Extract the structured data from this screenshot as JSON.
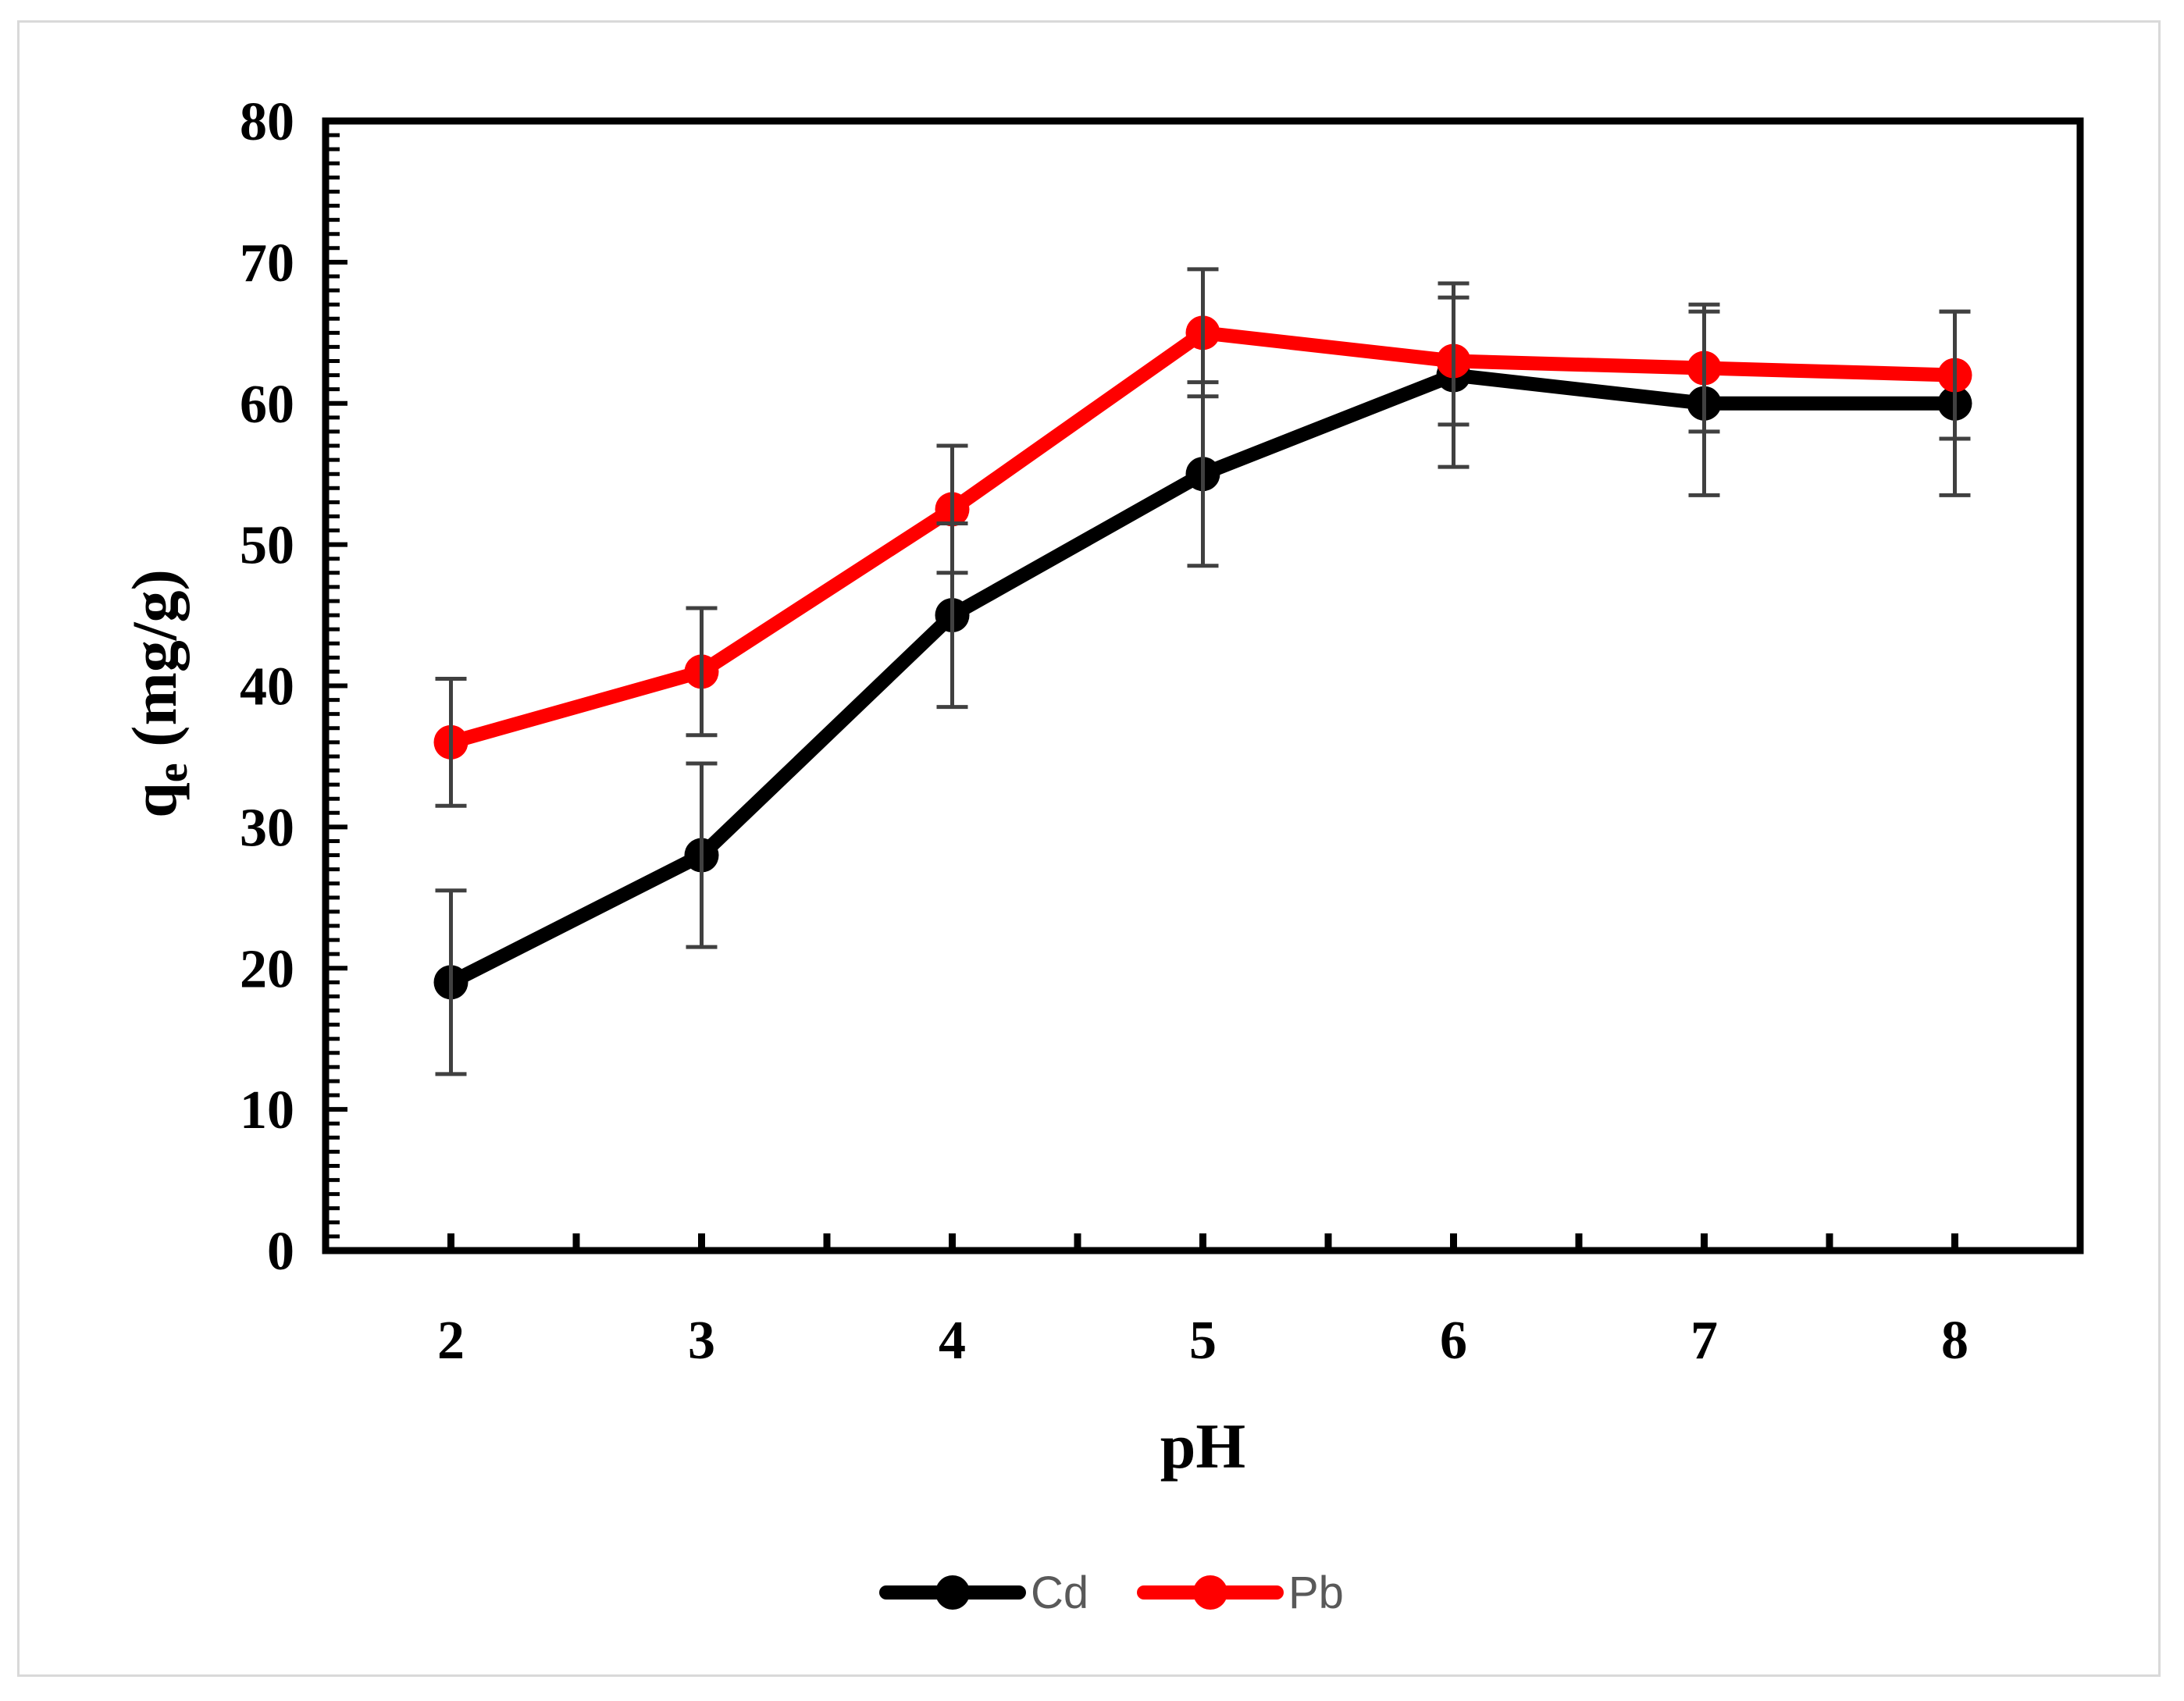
{
  "chart_data": {
    "type": "line",
    "xlabel": "pH",
    "ylabel_main": "q",
    "ylabel_sub": "e",
    "ylabel_unit": " (mg/g)",
    "x": [
      2,
      3,
      4,
      5,
      6,
      7,
      8
    ],
    "x_tick_labels": [
      "2",
      "3",
      "4",
      "5",
      "6",
      "7",
      "8"
    ],
    "ylim": [
      0,
      80
    ],
    "y_ticks": [
      0,
      10,
      20,
      30,
      40,
      50,
      60,
      70,
      80
    ],
    "y_tick_labels": [
      "0",
      "10",
      "20",
      "30",
      "40",
      "50",
      "60",
      "70",
      "80"
    ],
    "series": [
      {
        "name": "Cd",
        "color": "#000000",
        "values": [
          19,
          28,
          45,
          55,
          62,
          60,
          60
        ],
        "errors": [
          6.5,
          6.5,
          6.5,
          6.5,
          6.5,
          6.5,
          6.5
        ]
      },
      {
        "name": "Pb",
        "color": "#ff0000",
        "values": [
          36,
          41,
          52.5,
          65,
          63,
          62.5,
          62
        ],
        "errors": [
          4.5,
          4.5,
          4.5,
          4.5,
          4.5,
          4.5,
          4.5
        ]
      }
    ],
    "error_bar_color": "#404040",
    "legend_position": "bottom"
  }
}
